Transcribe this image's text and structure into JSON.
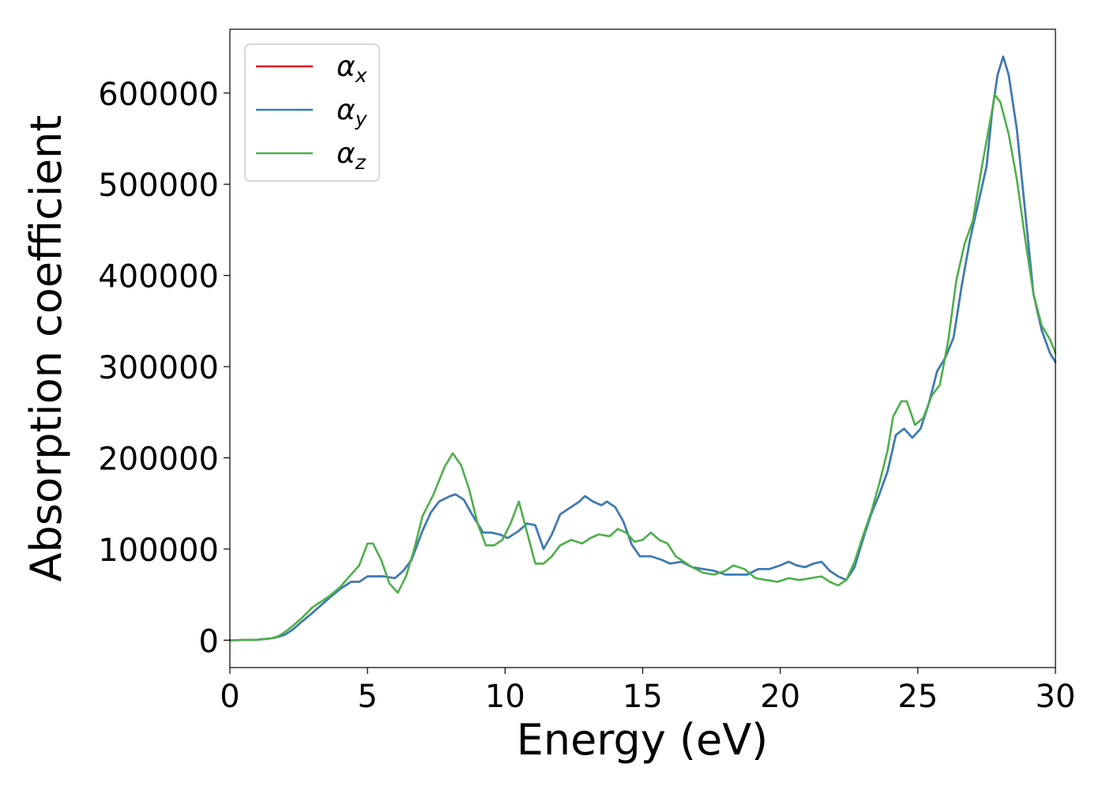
{
  "chart_data": {
    "type": "line",
    "title": "",
    "xlabel": "Energy (eV)",
    "ylabel": "Absorption coefficient",
    "xlim": [
      0,
      30
    ],
    "ylim": [
      -30000,
      670000
    ],
    "xticks": [
      0,
      5,
      10,
      15,
      20,
      25,
      30
    ],
    "yticks": [
      0,
      100000,
      200000,
      300000,
      400000,
      500000,
      600000
    ],
    "grid": false,
    "legend_position": "top-left",
    "series": [
      {
        "name": "α",
        "name_sub": "x",
        "color": "#e41a1c",
        "x": [
          0,
          1,
          1.5,
          1.8,
          2,
          2.3,
          2.6,
          3,
          3.3,
          3.6,
          4,
          4.4,
          4.7,
          5,
          5.3,
          5.6,
          6,
          6.3,
          6.6,
          7,
          7.3,
          7.6,
          8,
          8.2,
          8.5,
          8.8,
          9.2,
          9.5,
          9.8,
          10.1,
          10.5,
          10.8,
          11.1,
          11.4,
          11.7,
          12,
          12.4,
          12.7,
          12.9,
          13.2,
          13.5,
          13.7,
          14,
          14.3,
          14.6,
          14.9,
          15.3,
          15.7,
          16,
          16.4,
          16.8,
          17.2,
          17.6,
          18,
          18.4,
          18.8,
          19.2,
          19.6,
          20,
          20.3,
          20.6,
          20.9,
          21.2,
          21.5,
          21.8,
          22.1,
          22.4,
          22.7,
          23,
          23.3,
          23.6,
          23.9,
          24.2,
          24.5,
          24.8,
          25.1,
          25.4,
          25.7,
          26,
          26.3,
          26.6,
          26.9,
          27.2,
          27.5,
          27.7,
          27.9,
          28.1,
          28.3,
          28.6,
          28.9,
          29.2,
          29.5,
          29.8,
          30
        ],
        "y": [
          0,
          500,
          2000,
          4000,
          6000,
          12000,
          20000,
          30000,
          38000,
          46000,
          56000,
          64000,
          64000,
          70000,
          70000,
          70000,
          68000,
          76000,
          88000,
          120000,
          140000,
          152000,
          158000,
          160000,
          154000,
          138000,
          118000,
          118000,
          116000,
          112000,
          120000,
          128000,
          126000,
          100000,
          116000,
          138000,
          146000,
          152000,
          158000,
          152000,
          148000,
          152000,
          146000,
          130000,
          105000,
          92000,
          92000,
          88000,
          84000,
          86000,
          80000,
          78000,
          76000,
          72000,
          72000,
          72000,
          78000,
          78000,
          82000,
          86000,
          82000,
          80000,
          84000,
          86000,
          76000,
          70000,
          66000,
          80000,
          110000,
          138000,
          160000,
          185000,
          225000,
          232000,
          222000,
          232000,
          260000,
          295000,
          310000,
          332000,
          390000,
          440000,
          480000,
          520000,
          580000,
          620000,
          640000,
          620000,
          560000,
          470000,
          380000,
          340000,
          315000,
          305000
        ]
      },
      {
        "name": "α",
        "name_sub": "y",
        "color": "#377eb8",
        "x": [
          0,
          1,
          1.5,
          1.8,
          2,
          2.3,
          2.6,
          3,
          3.3,
          3.6,
          4,
          4.4,
          4.7,
          5,
          5.3,
          5.6,
          6,
          6.3,
          6.6,
          7,
          7.3,
          7.6,
          8,
          8.2,
          8.5,
          8.8,
          9.2,
          9.5,
          9.8,
          10.1,
          10.5,
          10.8,
          11.1,
          11.4,
          11.7,
          12,
          12.4,
          12.7,
          12.9,
          13.2,
          13.5,
          13.7,
          14,
          14.3,
          14.6,
          14.9,
          15.3,
          15.7,
          16,
          16.4,
          16.8,
          17.2,
          17.6,
          18,
          18.4,
          18.8,
          19.2,
          19.6,
          20,
          20.3,
          20.6,
          20.9,
          21.2,
          21.5,
          21.8,
          22.1,
          22.4,
          22.7,
          23,
          23.3,
          23.6,
          23.9,
          24.2,
          24.5,
          24.8,
          25.1,
          25.4,
          25.7,
          26,
          26.3,
          26.6,
          26.9,
          27.2,
          27.5,
          27.7,
          27.9,
          28.1,
          28.3,
          28.6,
          28.9,
          29.2,
          29.5,
          29.8,
          30
        ],
        "y": [
          0,
          500,
          2000,
          4000,
          6000,
          12000,
          20000,
          30000,
          38000,
          46000,
          56000,
          64000,
          64000,
          70000,
          70000,
          70000,
          68000,
          76000,
          88000,
          120000,
          140000,
          152000,
          158000,
          160000,
          154000,
          138000,
          118000,
          118000,
          116000,
          112000,
          120000,
          128000,
          126000,
          100000,
          116000,
          138000,
          146000,
          152000,
          158000,
          152000,
          148000,
          152000,
          146000,
          130000,
          105000,
          92000,
          92000,
          88000,
          84000,
          86000,
          80000,
          78000,
          76000,
          72000,
          72000,
          72000,
          78000,
          78000,
          82000,
          86000,
          82000,
          80000,
          84000,
          86000,
          76000,
          70000,
          66000,
          80000,
          110000,
          138000,
          160000,
          185000,
          225000,
          232000,
          222000,
          232000,
          260000,
          295000,
          310000,
          332000,
          390000,
          440000,
          480000,
          520000,
          580000,
          620000,
          640000,
          620000,
          560000,
          470000,
          380000,
          340000,
          315000,
          305000
        ]
      },
      {
        "name": "α",
        "name_sub": "z",
        "color": "#4daf4a",
        "x": [
          0,
          1,
          1.5,
          1.8,
          2,
          2.3,
          2.6,
          3,
          3.3,
          3.6,
          4,
          4.4,
          4.7,
          5,
          5.2,
          5.5,
          5.8,
          6.1,
          6.4,
          6.7,
          7,
          7.4,
          7.8,
          8.1,
          8.4,
          8.7,
          9,
          9.3,
          9.6,
          9.9,
          10.2,
          10.5,
          10.8,
          11.1,
          11.4,
          11.7,
          12,
          12.4,
          12.8,
          13.1,
          13.4,
          13.8,
          14.1,
          14.4,
          14.7,
          15,
          15.3,
          15.6,
          15.9,
          16.2,
          16.5,
          16.8,
          17.2,
          17.6,
          18,
          18.3,
          18.7,
          19.1,
          19.5,
          19.9,
          20.3,
          20.7,
          21.1,
          21.5,
          21.8,
          22.1,
          22.4,
          22.7,
          23,
          23.3,
          23.6,
          23.9,
          24.1,
          24.4,
          24.6,
          24.9,
          25.2,
          25.5,
          25.8,
          26.1,
          26.4,
          26.7,
          27,
          27.3,
          27.5,
          27.8,
          28,
          28.3,
          28.6,
          28.9,
          29.2,
          29.5,
          29.8,
          30
        ],
        "y": [
          0,
          500,
          2000,
          5000,
          9000,
          16000,
          24000,
          36000,
          42000,
          48000,
          58000,
          72000,
          82000,
          106000,
          106000,
          88000,
          62000,
          52000,
          70000,
          100000,
          136000,
          160000,
          190000,
          205000,
          192000,
          165000,
          128000,
          104000,
          104000,
          110000,
          128000,
          152000,
          118000,
          84000,
          84000,
          92000,
          104000,
          110000,
          106000,
          112000,
          116000,
          114000,
          122000,
          118000,
          108000,
          110000,
          118000,
          110000,
          106000,
          92000,
          86000,
          80000,
          74000,
          72000,
          76000,
          82000,
          78000,
          68000,
          66000,
          64000,
          68000,
          66000,
          68000,
          70000,
          64000,
          60000,
          66000,
          86000,
          114000,
          140000,
          172000,
          208000,
          245000,
          262000,
          262000,
          236000,
          244000,
          268000,
          280000,
          328000,
          395000,
          435000,
          460000,
          515000,
          548000,
          598000,
          590000,
          555000,
          505000,
          440000,
          380000,
          345000,
          330000,
          315000
        ]
      }
    ]
  }
}
